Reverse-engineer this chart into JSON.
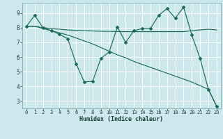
{
  "title": "",
  "xlabel": "Humidex (Indice chaleur)",
  "xlim": [
    -0.5,
    23.5
  ],
  "ylim": [
    2.5,
    9.7
  ],
  "xticks": [
    0,
    1,
    2,
    3,
    4,
    5,
    6,
    7,
    8,
    9,
    10,
    11,
    12,
    13,
    14,
    15,
    16,
    17,
    18,
    19,
    20,
    21,
    22,
    23
  ],
  "yticks": [
    3,
    4,
    5,
    6,
    7,
    8,
    9
  ],
  "bg_color": "#cce8ec",
  "grid_color": "#ffffff",
  "line_color": "#1a6b5a",
  "x_data": [
    0,
    1,
    2,
    3,
    4,
    5,
    6,
    7,
    8,
    9,
    10,
    11,
    12,
    13,
    14,
    15,
    16,
    17,
    18,
    19,
    20,
    21,
    22,
    23
  ],
  "y_jagged": [
    8.1,
    8.85,
    8.0,
    7.8,
    7.55,
    7.25,
    5.55,
    4.3,
    4.35,
    5.9,
    6.35,
    8.05,
    7.0,
    7.8,
    7.95,
    7.95,
    8.85,
    9.3,
    8.65,
    9.4,
    7.5,
    5.9,
    3.8,
    2.65
  ],
  "y_flat": [
    8.1,
    8.1,
    8.0,
    7.95,
    7.9,
    7.85,
    7.82,
    7.8,
    7.78,
    7.76,
    7.75,
    7.74,
    7.73,
    7.73,
    7.73,
    7.73,
    7.73,
    7.73,
    7.73,
    7.73,
    7.8,
    7.85,
    7.9,
    7.85
  ],
  "y_diagonal": [
    8.1,
    8.1,
    7.95,
    7.8,
    7.65,
    7.5,
    7.3,
    7.1,
    6.9,
    6.65,
    6.4,
    6.15,
    5.95,
    5.7,
    5.5,
    5.3,
    5.1,
    4.9,
    4.7,
    4.5,
    4.3,
    4.05,
    3.8,
    2.65
  ]
}
